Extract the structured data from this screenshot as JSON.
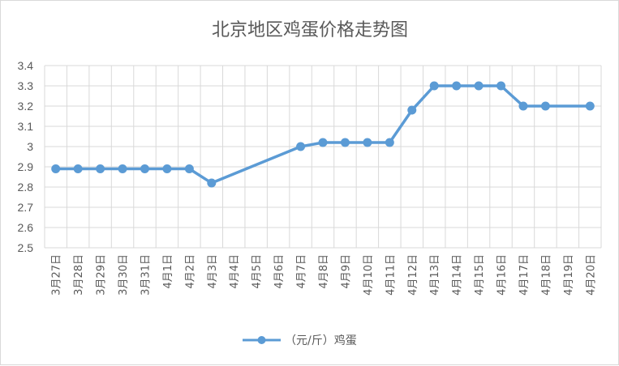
{
  "chart_data": {
    "type": "line",
    "title": "北京地区鸡蛋价格走势图",
    "xlabel": "",
    "ylabel": "",
    "ylim": [
      2.5,
      3.4
    ],
    "yticks": [
      "3.4",
      "3.3",
      "3.2",
      "3.1",
      "3",
      "2.9",
      "2.8",
      "2.7",
      "2.6",
      "2.5"
    ],
    "grid": true,
    "legend_position": "bottom",
    "categories": [
      "3月27日",
      "3月28日",
      "3月29日",
      "3月30日",
      "3月31日",
      "4月1日",
      "4月2日",
      "4月3日",
      "4月4日",
      "4月5日",
      "4月6日",
      "4月7日",
      "4月8日",
      "4月9日",
      "4月10日",
      "4月11日",
      "4月12日",
      "4月13日",
      "4月14日",
      "4月15日",
      "4月16日",
      "4月17日",
      "4月18日",
      "4月19日",
      "4月20日"
    ],
    "series": [
      {
        "name": "（元/斤）鸡蛋",
        "color": "#5b9bd5",
        "values": [
          2.89,
          2.89,
          2.89,
          2.89,
          2.89,
          2.89,
          2.89,
          2.82,
          null,
          null,
          null,
          3.0,
          3.02,
          3.02,
          3.02,
          3.02,
          3.18,
          3.3,
          3.3,
          3.3,
          3.3,
          3.2,
          3.2,
          null,
          3.2
        ]
      }
    ]
  }
}
